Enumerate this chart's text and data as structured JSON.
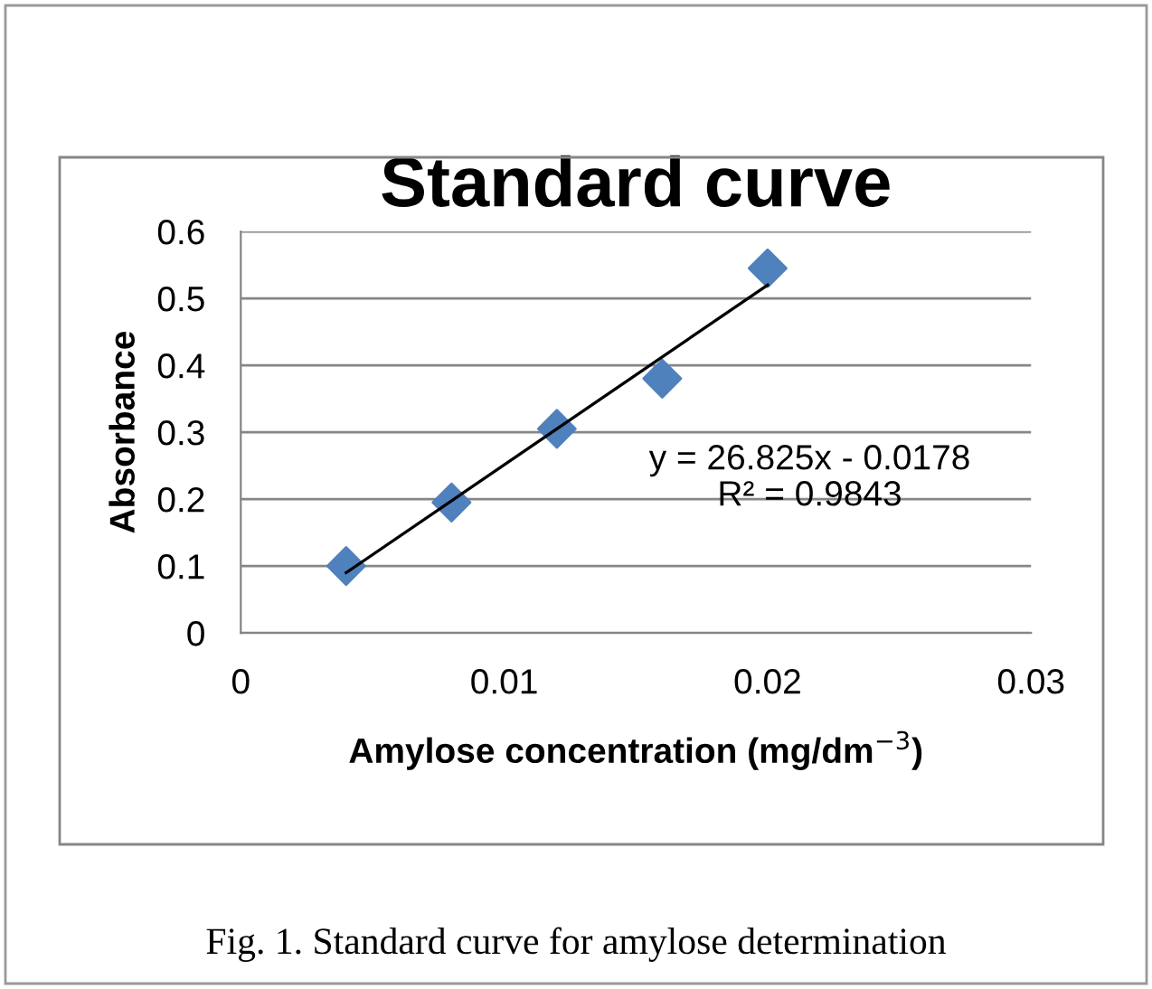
{
  "chart_data": {
    "type": "scatter",
    "title": "Standard curve",
    "xlabel": "Amylose concentration (mg/dm$^{−3}$)",
    "ylabel": "Absorbance",
    "x": [
      0.004,
      0.008,
      0.012,
      0.016,
      0.02
    ],
    "series": [
      {
        "color": "#4f81bd",
        "values": [
          0.1,
          0.195,
          0.305,
          0.38,
          0.545
        ],
        "marker": "diamond"
      },
      {
        "type": "line",
        "color": "#000000",
        "x": [
          0.004,
          0.02
        ],
        "values": [
          0.09,
          0.52
        ],
        "marker": "none",
        "line_style": "solid"
      }
    ],
    "xlim": [
      0,
      0.03
    ],
    "xticks": [
      0,
      0.01,
      0.02,
      0.03
    ],
    "ylim": [
      0,
      0.6
    ],
    "yticks": [
      0,
      0.1,
      0.2,
      0.3,
      0.4,
      0.5,
      0.6
    ],
    "grid": "y",
    "annotations": [
      "y = 26.825x - 0.0178",
      "R² = 0.9843",
      "Fig. 1. Standard curve for amylose determination"
    ]
  }
}
